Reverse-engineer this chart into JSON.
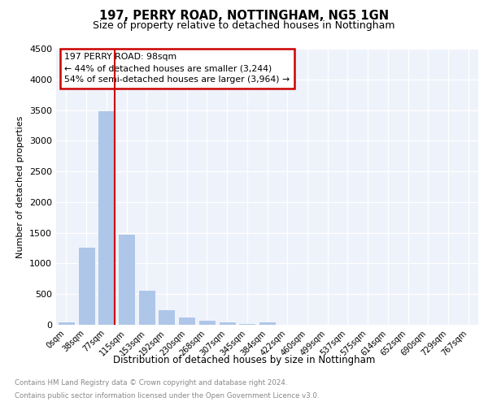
{
  "title1": "197, PERRY ROAD, NOTTINGHAM, NG5 1GN",
  "title2": "Size of property relative to detached houses in Nottingham",
  "xlabel": "Distribution of detached houses by size in Nottingham",
  "ylabel": "Number of detached properties",
  "bar_values": [
    50,
    1270,
    3500,
    1480,
    570,
    250,
    130,
    80,
    50,
    30,
    50,
    0,
    0,
    0,
    0,
    0,
    0,
    0,
    0,
    0,
    0
  ],
  "bar_labels": [
    "0sqm",
    "38sqm",
    "77sqm",
    "115sqm",
    "153sqm",
    "192sqm",
    "230sqm",
    "268sqm",
    "307sqm",
    "345sqm",
    "384sqm",
    "422sqm",
    "460sqm",
    "499sqm",
    "537sqm",
    "575sqm",
    "614sqm",
    "652sqm",
    "690sqm",
    "729sqm",
    "767sqm"
  ],
  "bar_color": "#aec6e8",
  "vline_color": "#cc0000",
  "vline_pos": 2.42,
  "annotation_title": "197 PERRY ROAD: 98sqm",
  "annotation_line1": "← 44% of detached houses are smaller (3,244)",
  "annotation_line2": "54% of semi-detached houses are larger (3,964) →",
  "annotation_box_edgecolor": "#cc0000",
  "ylim": [
    0,
    4500
  ],
  "yticks": [
    0,
    500,
    1000,
    1500,
    2000,
    2500,
    3000,
    3500,
    4000,
    4500
  ],
  "footnote1": "Contains HM Land Registry data © Crown copyright and database right 2024.",
  "footnote2": "Contains public sector information licensed under the Open Government Licence v3.0.",
  "plot_background": "#eef2fb"
}
